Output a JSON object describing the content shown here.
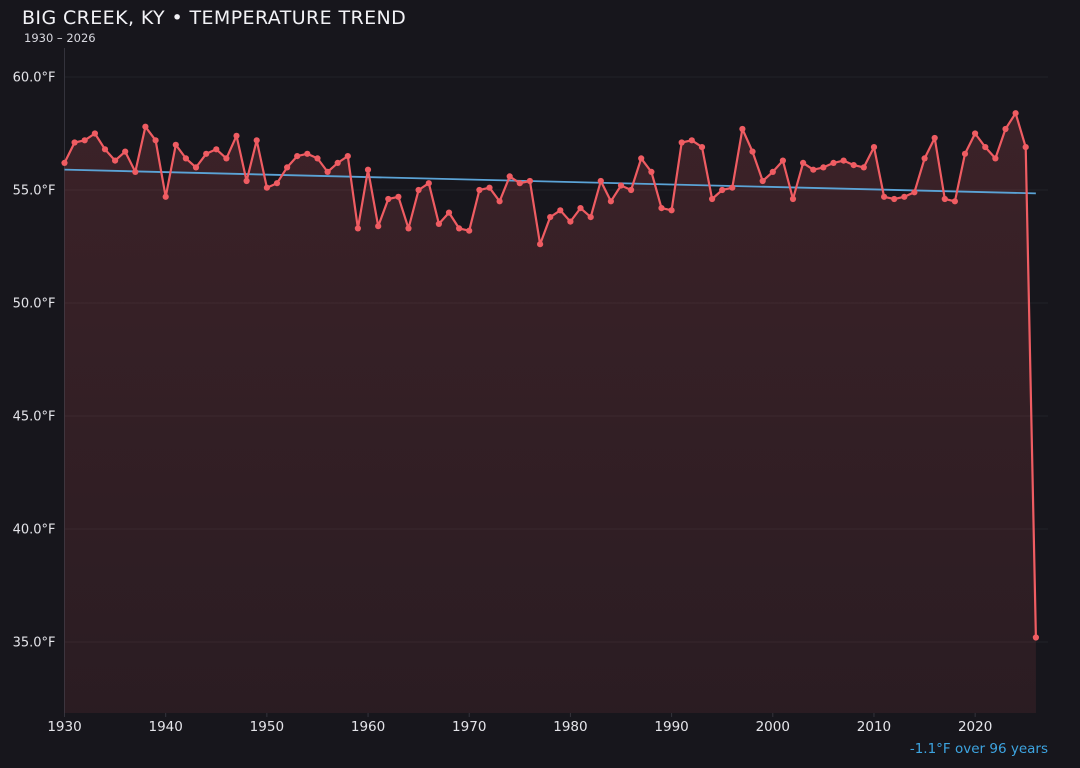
{
  "chart_data": {
    "type": "line",
    "title": "BIG CREEK, KY • TEMPERATURE TREND",
    "subtitle": "1930 – 2026",
    "ylabel": "",
    "xlabel": "",
    "legend": "none",
    "grid": "horizontal",
    "points": [
      [
        1930,
        56.2
      ],
      [
        1931,
        57.1
      ],
      [
        1932,
        57.2
      ],
      [
        1933,
        57.5
      ],
      [
        1934,
        56.8
      ],
      [
        1935,
        56.3
      ],
      [
        1936,
        56.7
      ],
      [
        1937,
        55.8
      ],
      [
        1938,
        57.8
      ],
      [
        1939,
        57.2
      ],
      [
        1940,
        54.7
      ],
      [
        1941,
        57.0
      ],
      [
        1942,
        56.4
      ],
      [
        1943,
        56.0
      ],
      [
        1944,
        56.6
      ],
      [
        1945,
        56.8
      ],
      [
        1946,
        56.4
      ],
      [
        1947,
        57.4
      ],
      [
        1948,
        55.4
      ],
      [
        1949,
        57.2
      ],
      [
        1950,
        55.1
      ],
      [
        1951,
        55.3
      ],
      [
        1952,
        56.0
      ],
      [
        1953,
        56.5
      ],
      [
        1954,
        56.6
      ],
      [
        1955,
        56.4
      ],
      [
        1956,
        55.8
      ],
      [
        1957,
        56.2
      ],
      [
        1958,
        56.5
      ],
      [
        1959,
        53.3
      ],
      [
        1960,
        55.9
      ],
      [
        1961,
        53.4
      ],
      [
        1962,
        54.6
      ],
      [
        1963,
        54.7
      ],
      [
        1964,
        53.3
      ],
      [
        1965,
        55.0
      ],
      [
        1966,
        55.3
      ],
      [
        1967,
        53.5
      ],
      [
        1968,
        54.0
      ],
      [
        1969,
        53.3
      ],
      [
        1970,
        53.2
      ],
      [
        1971,
        55.0
      ],
      [
        1972,
        55.1
      ],
      [
        1973,
        54.5
      ],
      [
        1974,
        55.6
      ],
      [
        1975,
        55.3
      ],
      [
        1976,
        55.4
      ],
      [
        1977,
        52.6
      ],
      [
        1978,
        53.8
      ],
      [
        1979,
        54.1
      ],
      [
        1980,
        53.6
      ],
      [
        1981,
        54.2
      ],
      [
        1982,
        53.8
      ],
      [
        1983,
        55.4
      ],
      [
        1984,
        54.5
      ],
      [
        1985,
        55.2
      ],
      [
        1986,
        55.0
      ],
      [
        1987,
        56.4
      ],
      [
        1988,
        55.8
      ],
      [
        1989,
        54.2
      ],
      [
        1990,
        54.1
      ],
      [
        1991,
        57.1
      ],
      [
        1992,
        57.2
      ],
      [
        1993,
        56.9
      ],
      [
        1994,
        54.6
      ],
      [
        1995,
        55.0
      ],
      [
        1996,
        55.1
      ],
      [
        1997,
        57.7
      ],
      [
        1998,
        56.7
      ],
      [
        1999,
        55.4
      ],
      [
        2000,
        55.8
      ],
      [
        2001,
        56.3
      ],
      [
        2002,
        54.6
      ],
      [
        2003,
        56.2
      ],
      [
        2004,
        55.9
      ],
      [
        2005,
        56.0
      ],
      [
        2006,
        56.2
      ],
      [
        2007,
        56.3
      ],
      [
        2008,
        56.1
      ],
      [
        2009,
        56.0
      ],
      [
        2010,
        56.9
      ],
      [
        2011,
        54.7
      ],
      [
        2012,
        54.6
      ],
      [
        2013,
        54.7
      ],
      [
        2014,
        54.9
      ],
      [
        2015,
        56.4
      ],
      [
        2016,
        57.3
      ],
      [
        2017,
        54.6
      ],
      [
        2018,
        54.5
      ],
      [
        2019,
        56.6
      ],
      [
        2020,
        57.5
      ],
      [
        2021,
        56.9
      ],
      [
        2022,
        56.4
      ],
      [
        2023,
        57.7
      ],
      [
        2024,
        58.4
      ],
      [
        2025,
        56.9
      ],
      [
        2026,
        35.2
      ]
    ],
    "trend": {
      "start_year": 1930,
      "end_year": 2026,
      "start_value": 55.9,
      "end_value": 54.85,
      "label": "-1.1°F over 96 years"
    },
    "x_axis": {
      "tick_values": [
        1930,
        1940,
        1950,
        1960,
        1970,
        1980,
        1990,
        2000,
        2010,
        2020
      ],
      "range": [
        1930,
        2027.2
      ]
    },
    "y_axis": {
      "tick_labels": [
        "60.0°F",
        "55.0°F",
        "50.0°F",
        "45.0°F",
        "40.0°F",
        "35.0°F"
      ],
      "tick_values": [
        60,
        55,
        50,
        45,
        40,
        35
      ],
      "range": [
        31.9,
        61.3
      ],
      "unit": "°F"
    },
    "colors": {
      "background": "#17161c",
      "line": "#ef5c62",
      "marker": "#ef5c62",
      "area_fill_top": "rgba(239,92,98,0.17)",
      "area_fill_bottom": "rgba(239,92,98,0.09)",
      "trend_line": "#5ba3d6",
      "annotation_text": "#3da4e0",
      "grid_line": "rgba(255,255,255,0.05)",
      "axis_spine": "#34333c",
      "tick_text": "#e4e4e9",
      "title_text": "#f2f2f6",
      "subtitle_text": "#d9d9e0"
    }
  }
}
